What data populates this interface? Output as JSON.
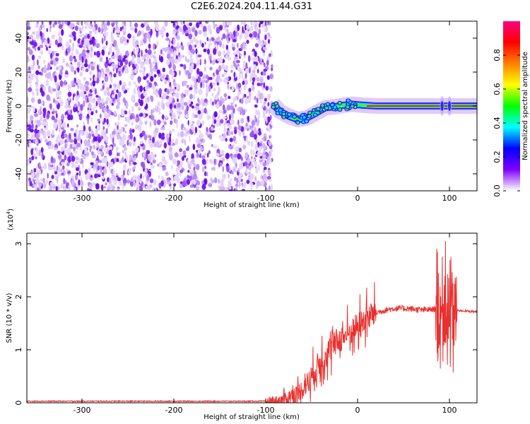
{
  "title": "C2E6.2024.204.11.44.G31",
  "colors": {
    "snr_line": "#e8312e",
    "noise_points": "#7a1ff0",
    "axes": "#000000"
  },
  "chart_data": [
    {
      "type": "heatmap",
      "name": "spectrogram",
      "xlabel": "Height of straight line (km)",
      "ylabel": "Frequency (Hz)",
      "xlim": [
        -360,
        130
      ],
      "ylim": [
        -50,
        50
      ],
      "xticks": [
        -300,
        -200,
        -100,
        0,
        100
      ],
      "yticks": [
        -40,
        -20,
        0,
        20,
        40
      ],
      "colorbar": {
        "label": "Normalized spectral amplitude",
        "range": [
          0,
          1
        ],
        "ticks": [
          "0.0",
          "0.2",
          "0.4",
          "0.6",
          "0.8"
        ],
        "tick_values": [
          0,
          0.2,
          0.4,
          0.6,
          0.8
        ],
        "colormap": [
          "#ffffff",
          "#8000ff",
          "#0000ff",
          "#00ffff",
          "#00ff00",
          "#ffff00",
          "#ff8000",
          "#ff0000",
          "#ff0080"
        ]
      },
      "noise_region_x": [
        -360,
        -93
      ],
      "signal_track": [
        {
          "x": -92,
          "y": 1
        },
        {
          "x": -85,
          "y": -3
        },
        {
          "x": -75,
          "y": -6
        },
        {
          "x": -65,
          "y": -8
        },
        {
          "x": -55,
          "y": -7
        },
        {
          "x": -45,
          "y": -4
        },
        {
          "x": -35,
          "y": -1
        },
        {
          "x": -25,
          "y": -0.5
        },
        {
          "x": -15,
          "y": 0.5
        },
        {
          "x": -5,
          "y": 1
        },
        {
          "x": 5,
          "y": 0.5
        },
        {
          "x": 20,
          "y": 0
        },
        {
          "x": 60,
          "y": 0
        },
        {
          "x": 100,
          "y": 0
        },
        {
          "x": 130,
          "y": 0
        }
      ]
    },
    {
      "type": "line",
      "name": "snr",
      "xlabel": "Height of straight line (km)",
      "ylabel": "SNR (10 * v/v)",
      "y_multiplier_label": "(x10",
      "y_multiplier_exp": "4",
      "y_multiplier_close": ")",
      "xlim": [
        -360,
        130
      ],
      "ylim": [
        0,
        3.2
      ],
      "xticks": [
        -300,
        -200,
        -100,
        0,
        100
      ],
      "yticks": [
        0,
        1,
        2,
        3
      ],
      "x": [
        -360,
        -100,
        -80,
        -60,
        -50,
        -40,
        -30,
        -20,
        -10,
        0,
        10,
        20,
        30,
        40,
        50,
        60,
        70,
        80,
        90,
        95,
        100,
        105,
        110,
        120,
        130
      ],
      "y": [
        0.03,
        0.03,
        0.05,
        0.25,
        0.5,
        0.8,
        1.0,
        1.2,
        1.3,
        1.45,
        1.6,
        1.7,
        1.75,
        1.78,
        1.78,
        1.77,
        1.75,
        1.76,
        1.78,
        1.8,
        1.7,
        1.75,
        1.74,
        1.73,
        1.72
      ]
    }
  ]
}
